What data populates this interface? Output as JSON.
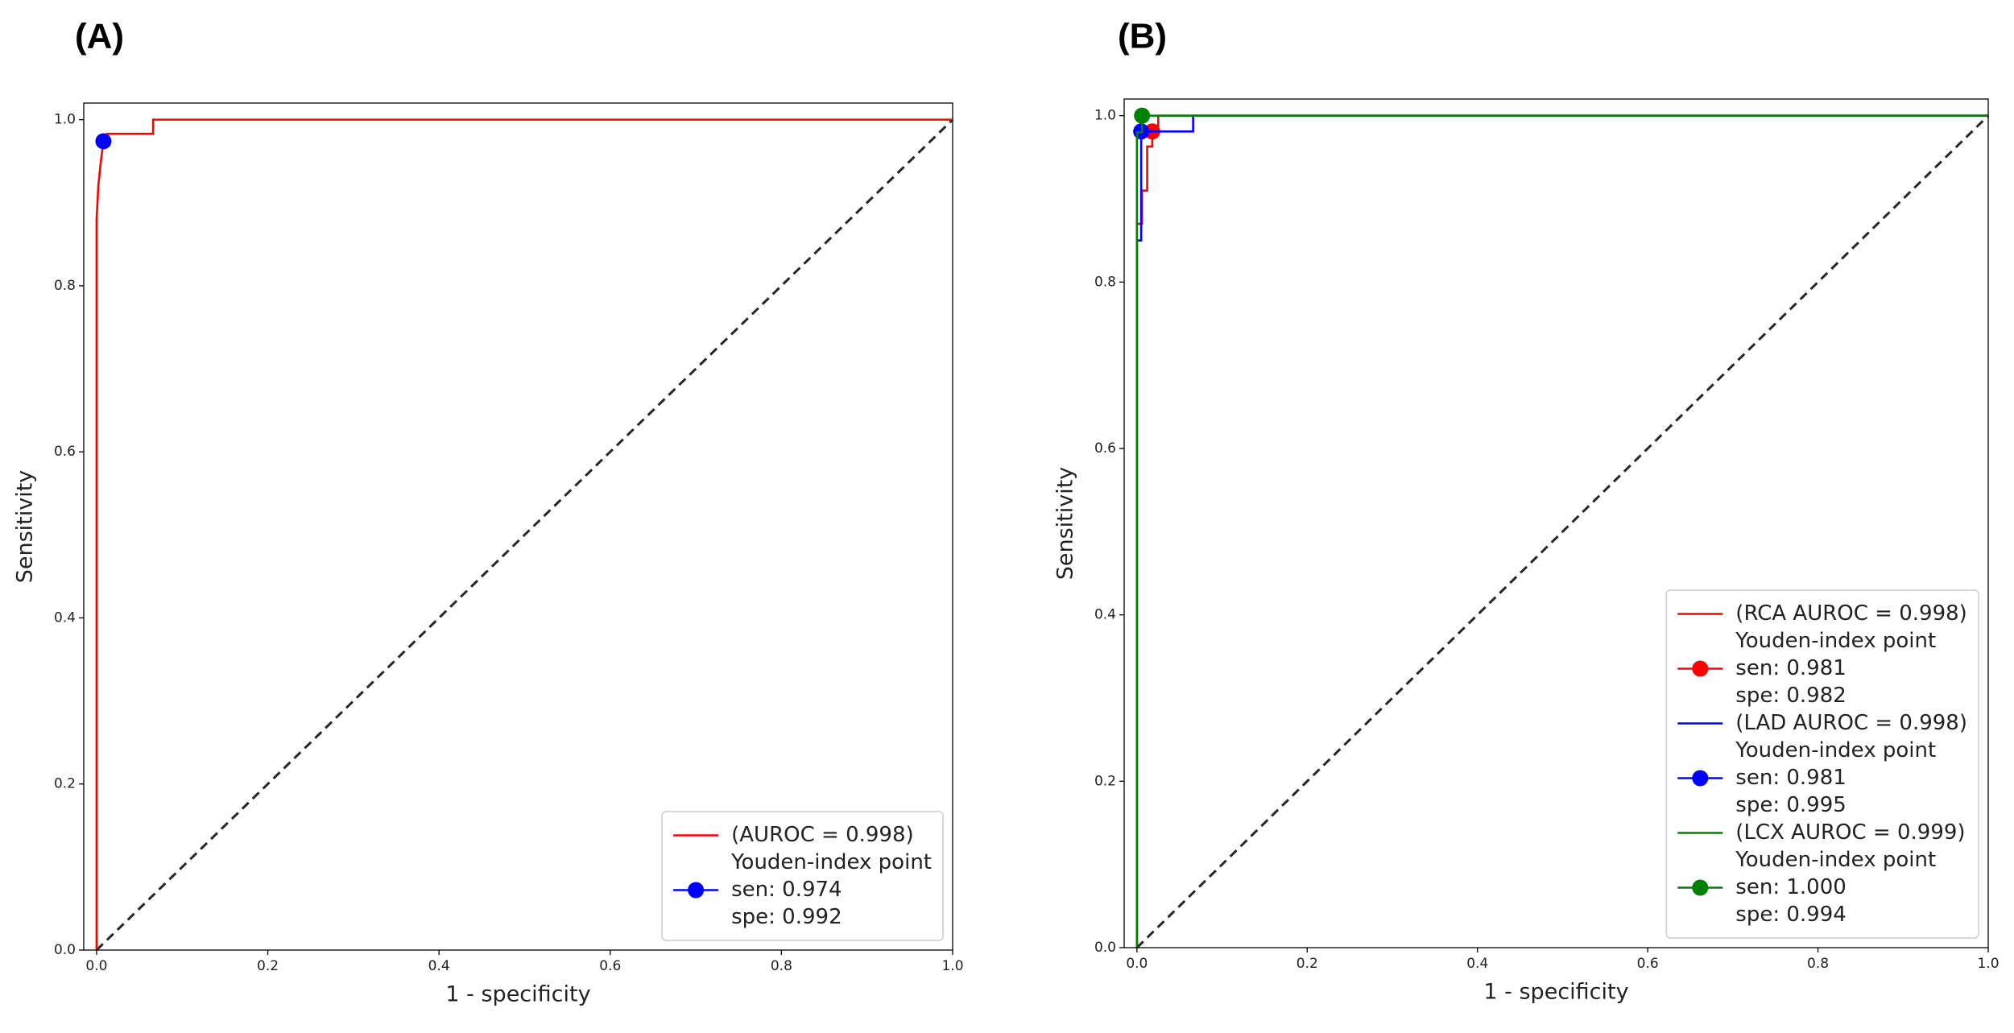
{
  "chart_data": [
    {
      "type": "line",
      "panel_label": "(A)",
      "x_label": "1 - specificity",
      "y_label": "Sensitivity",
      "xlim": [
        -0.015,
        1.0
      ],
      "ylim": [
        0,
        1.02
      ],
      "xticks": [
        {
          "value": 0,
          "label": "0.0"
        },
        0.2,
        0.4,
        0.6,
        0.8,
        {
          "value": 1,
          "label": "1.0"
        }
      ],
      "yticks": [
        {
          "value": 0,
          "label": "0.0"
        },
        0.2,
        0.4,
        0.6,
        0.8,
        {
          "value": 1,
          "label": "1.0"
        }
      ],
      "legend": "lower right",
      "series": [
        {
          "name": "(AUROC = 0.998)",
          "color": "#ff0000",
          "x": [
            0,
            0,
            0.002,
            0.005,
            0.008,
            0.012,
            0.012,
            0.066,
            0.066,
            1.0
          ],
          "values": [
            0,
            0.88,
            0.92,
            0.95,
            0.974,
            0.974,
            0.983,
            0.983,
            1.0,
            1.0
          ]
        },
        {
          "name": "Youden-index point",
          "detail": [
            "sen: 0.974",
            "spe: 0.992"
          ],
          "color": "#0000ff",
          "marker": "circle",
          "x": [
            0.008
          ],
          "values": [
            0.974
          ]
        },
        {
          "color": "#000000",
          "dash": true,
          "x": [
            0,
            1
          ],
          "values": [
            0,
            1
          ]
        }
      ]
    },
    {
      "type": "line",
      "panel_label": "(B)",
      "x_label": "1 - specificity",
      "y_label": "Sensitivity",
      "xlim": [
        -0.015,
        1.0
      ],
      "ylim": [
        0,
        1.02
      ],
      "xticks": [
        {
          "value": 0,
          "label": "0.0"
        },
        0.2,
        0.4,
        0.6,
        0.8,
        {
          "value": 1,
          "label": "1.0"
        }
      ],
      "yticks": [
        {
          "value": 0,
          "label": "0.0"
        },
        0.2,
        0.4,
        0.6,
        0.8,
        {
          "value": 1,
          "label": "1.0"
        }
      ],
      "legend": "lower right",
      "series": [
        {
          "name": "(RCA AUROC = 0.998)",
          "color": "#ff0000",
          "x": [
            0,
            0,
            0.006,
            0.006,
            0.012,
            0.012,
            0.018,
            0.018,
            0.025,
            0.025,
            1.0
          ],
          "values": [
            0,
            0.87,
            0.87,
            0.91,
            0.91,
            0.963,
            0.963,
            0.981,
            0.981,
            1.0,
            1.0
          ]
        },
        {
          "name": "Youden-index point",
          "detail": [
            "sen: 0.981",
            "spe: 0.982"
          ],
          "color": "#ff0000",
          "marker": "circle",
          "x": [
            0.018
          ],
          "values": [
            0.981
          ]
        },
        {
          "name": "(LAD AUROC = 0.998)",
          "color": "#0000ff",
          "x": [
            0,
            0,
            0.005,
            0.005,
            0.066,
            0.066,
            1.0
          ],
          "values": [
            0,
            0.85,
            0.85,
            0.981,
            0.981,
            1.0,
            1.0
          ]
        },
        {
          "name": "Youden-index point",
          "detail": [
            "sen: 0.981",
            "spe: 0.995"
          ],
          "color": "#0000ff",
          "marker": "circle",
          "x": [
            0.005
          ],
          "values": [
            0.981
          ]
        },
        {
          "name": "(LCX AUROC = 0.999)",
          "color": "#008000",
          "x": [
            0,
            0,
            0.006,
            0.006,
            1.0
          ],
          "values": [
            0,
            0.98,
            0.98,
            1.0,
            1.0
          ]
        },
        {
          "name": "Youden-index point",
          "detail": [
            "sen: 1.000",
            "spe: 0.994"
          ],
          "color": "#008000",
          "marker": "circle",
          "x": [
            0.006
          ],
          "values": [
            1.0
          ]
        },
        {
          "color": "#000000",
          "dash": true,
          "x": [
            0,
            1
          ],
          "values": [
            0,
            1
          ]
        }
      ]
    }
  ]
}
